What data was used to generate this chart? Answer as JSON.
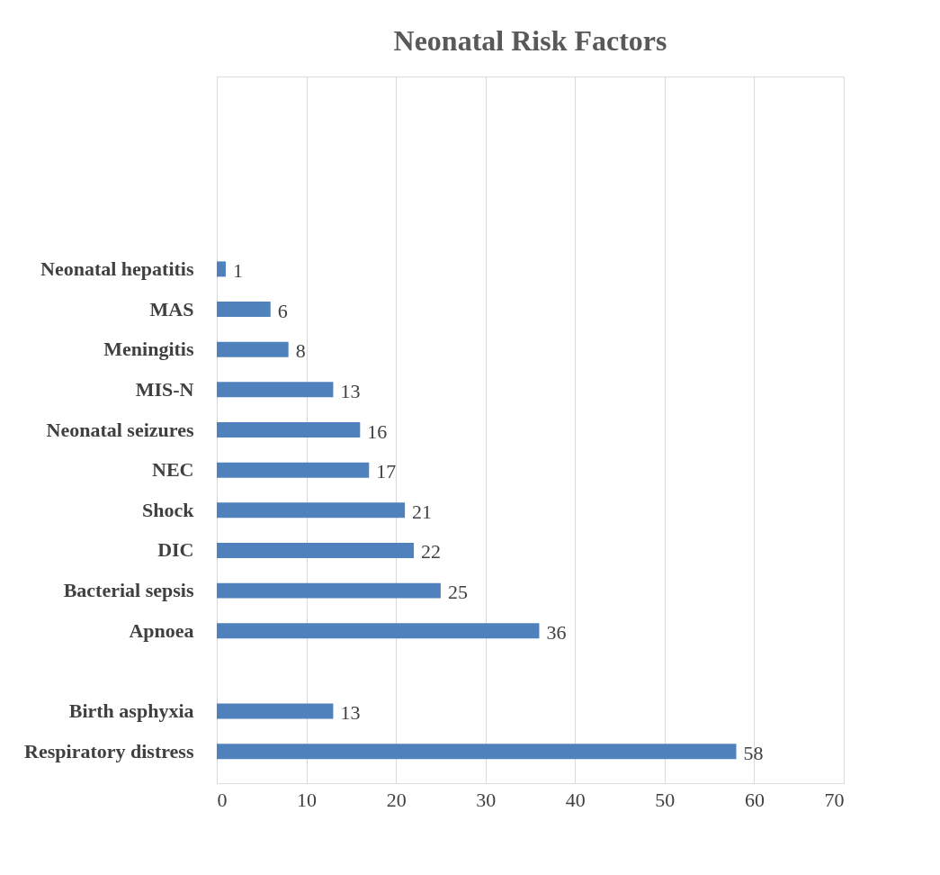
{
  "chart_data": {
    "type": "bar",
    "orientation": "horizontal",
    "title": "Neonatal Risk Factors",
    "categories": [
      null,
      null,
      null,
      null,
      "Neonatal hepatitis",
      "MAS",
      "Meningitis",
      "MIS-N",
      "Neonatal seizures",
      "NEC",
      "Shock",
      "DIC",
      "Bacterial sepsis",
      "Apnoea",
      null,
      "Birth asphyxia",
      "Respiratory distress"
    ],
    "values": [
      null,
      null,
      null,
      null,
      1,
      6,
      8,
      13,
      16,
      17,
      21,
      22,
      25,
      36,
      null,
      13,
      58
    ],
    "color": "#4f81bd",
    "xlim": [
      0,
      70
    ],
    "xticks": [
      0,
      10,
      20,
      30,
      40,
      50,
      60,
      70
    ],
    "grid": "x",
    "data_labels": true
  }
}
